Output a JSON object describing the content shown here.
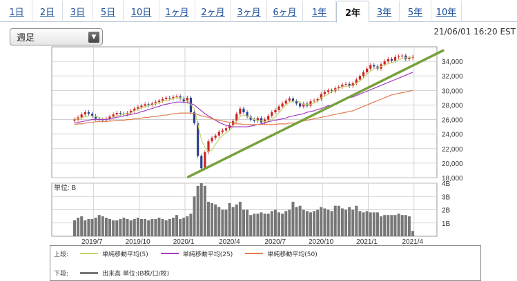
{
  "tabs": [
    {
      "label": "1日"
    },
    {
      "label": "2日"
    },
    {
      "label": "3日"
    },
    {
      "label": "5日"
    },
    {
      "label": "10日"
    },
    {
      "label": "1ヶ月"
    },
    {
      "label": "2ヶ月"
    },
    {
      "label": "3ヶ月"
    },
    {
      "label": "6ヶ月"
    },
    {
      "label": "1年"
    },
    {
      "label": "2年"
    },
    {
      "label": "3年"
    },
    {
      "label": "5年"
    },
    {
      "label": "10年"
    }
  ],
  "active_tab": "2年",
  "period_select": {
    "value": "週足",
    "arrow_icon": "triangle-down-icon"
  },
  "timestamp": "21/06/01 16:20 EST",
  "legend": {
    "upper_prefix": "上段:",
    "lower_prefix": "下段:",
    "ma5": "単純移動平均(5)",
    "ma25": "単純移動平均(25)",
    "ma50": "単純移動平均(50)",
    "volume": "出来高 単位:(B株/口/枚)"
  },
  "chart_data": [
    {
      "type": "line",
      "subtype": "candlestick weekly",
      "ylabel_ticks": [
        "34,000",
        "32,000",
        "30,000",
        "28,000",
        "26,000",
        "24,000",
        "22,000",
        "20,000",
        "18,000"
      ],
      "ylim": [
        18000,
        36000
      ],
      "x_ticks": [
        "2019/7",
        "2019/10",
        "2020/1",
        "2020/4",
        "2020/7",
        "2020/10",
        "2021/1",
        "2021/4"
      ],
      "grid": true,
      "price_series": [
        {
          "name": "close",
          "values": [
            26000,
            26300,
            26700,
            27000,
            26800,
            26500,
            26100,
            26000,
            25900,
            26100,
            26400,
            26700,
            26900,
            26800,
            26700,
            26900,
            27200,
            27500,
            27700,
            27900,
            28100,
            28000,
            28200,
            28400,
            28600,
            28800,
            29000,
            28900,
            29100,
            29200,
            28900,
            28500,
            29000,
            27000,
            25500,
            21000,
            19300,
            21500,
            23000,
            23500,
            23800,
            24300,
            24500,
            24800,
            25200,
            25800,
            26800,
            27500,
            27000,
            26400,
            26000,
            25800,
            26200,
            25600,
            26000,
            26500,
            27000,
            27300,
            27800,
            28200,
            28600,
            28900,
            28500,
            28200,
            27800,
            28200,
            27900,
            28500,
            28600,
            28800,
            29500,
            29800,
            30000,
            29900,
            30300,
            30500,
            30800,
            30900,
            30600,
            31000,
            31500,
            32000,
            32500,
            33000,
            33500,
            33300,
            33000,
            33600,
            34000,
            34300,
            34100,
            34600,
            34700,
            34800,
            34300,
            34500,
            34600
          ]
        },
        {
          "name": "単純移動平均(5)",
          "values": [
            26100,
            26100,
            26200,
            26400,
            26500,
            26500,
            26400,
            26300,
            26100,
            26000,
            26100,
            26300,
            26500,
            26600,
            26700,
            26800,
            26900,
            27200,
            27400,
            27600,
            27800,
            27900,
            28000,
            28200,
            28300,
            28500,
            28600,
            28700,
            28900,
            29000,
            29000,
            28800,
            28600,
            28100,
            27500,
            25400,
            23200,
            22200,
            21600,
            21800,
            22600,
            23300,
            23800,
            24200,
            24500,
            25100,
            25800,
            26400,
            26600,
            26500,
            26300,
            26000,
            25900,
            25800,
            25700,
            25800,
            26000,
            26400,
            26900,
            27500,
            28000,
            28400,
            28500,
            28600,
            28400,
            28100,
            28100,
            28100,
            28300,
            28500,
            29000,
            29200,
            29500,
            29800,
            30100,
            30300,
            30500,
            30600,
            30600,
            30700,
            31000,
            31300,
            31700,
            32200,
            32700,
            33000,
            33100,
            33300,
            33500,
            33700,
            33800,
            34000,
            34200,
            34400,
            34500,
            34500,
            34600
          ]
        },
        {
          "name": "単純移動平均(25)",
          "values": [
            25500,
            25600,
            25700,
            25800,
            25900,
            26000,
            26000,
            26000,
            26000,
            26000,
            26100,
            26200,
            26300,
            26400,
            26500,
            26600,
            26700,
            26800,
            26900,
            27100,
            27200,
            27400,
            27500,
            27700,
            27800,
            28000,
            28100,
            28200,
            28300,
            28400,
            28400,
            28400,
            28300,
            28200,
            28000,
            27600,
            27200,
            26800,
            26500,
            26200,
            25900,
            25600,
            25400,
            25200,
            25100,
            25000,
            25000,
            25000,
            25000,
            25000,
            25100,
            25200,
            25300,
            25400,
            25500,
            25700,
            25800,
            25900,
            26000,
            26100,
            26200,
            26400,
            26500,
            26600,
            26700,
            26800,
            27000,
            27100,
            27200,
            27400,
            27500,
            27700,
            27900,
            28000,
            28200,
            28400,
            28600,
            28800,
            29000,
            29100,
            29300,
            29500,
            29700,
            29900,
            30100,
            30300,
            30500,
            30700,
            30900,
            31100,
            31300,
            31500,
            31700,
            31900,
            32100,
            32300,
            32500
          ]
        },
        {
          "name": "単純移動平均(50)",
          "values": [
            25300,
            25400,
            25400,
            25500,
            25600,
            25600,
            25700,
            25700,
            25700,
            25700,
            25800,
            25800,
            25900,
            25900,
            25900,
            26000,
            26000,
            26100,
            26100,
            26200,
            26300,
            26300,
            26400,
            26400,
            26500,
            26600,
            26600,
            26700,
            26800,
            26800,
            26900,
            26900,
            26900,
            26900,
            26800,
            26700,
            26500,
            26400,
            26300,
            26100,
            26000,
            25900,
            25800,
            25700,
            25600,
            25500,
            25400,
            25400,
            25300,
            25300,
            25300,
            25300,
            25300,
            25300,
            25300,
            25300,
            25300,
            25300,
            25400,
            25400,
            25400,
            25500,
            25500,
            25600,
            25700,
            25800,
            25900,
            26000,
            26100,
            26200,
            26300,
            26400,
            26500,
            26600,
            26700,
            26800,
            26900,
            27000,
            27100,
            27200,
            27400,
            27600,
            27800,
            28000,
            28200,
            28400,
            28600,
            28800,
            29000,
            29200,
            29400,
            29500,
            29600,
            29700,
            29800,
            29900,
            30000
          ]
        }
      ],
      "trendline": {
        "from": {
          "x": "2020/3",
          "y": 18100
        },
        "to": {
          "x": "2021/6",
          "y": 35500
        },
        "color": "#77a13a"
      }
    },
    {
      "type": "bar",
      "subtype": "volume",
      "ylabel": "単位: B",
      "ylabel_ticks": [
        "4B",
        "3B",
        "2B",
        "1B"
      ],
      "ylim": [
        0,
        4
      ],
      "values": [
        1.2,
        1.4,
        1.5,
        1.2,
        1.3,
        1.3,
        1.4,
        1.6,
        1.5,
        1.4,
        1.3,
        1.2,
        1.2,
        1.3,
        1.4,
        1.3,
        1.2,
        1.3,
        1.4,
        1.3,
        1.3,
        1.2,
        1.3,
        1.3,
        1.4,
        1.3,
        1.2,
        1.3,
        1.4,
        1.6,
        1.3,
        1.4,
        1.5,
        1.7,
        3.0,
        3.8,
        4.0,
        3.8,
        2.6,
        2.5,
        2.4,
        2.2,
        2.0,
        2.0,
        2.5,
        2.2,
        2.4,
        2.6,
        2.0,
        2.0,
        1.6,
        1.7,
        1.7,
        1.8,
        1.7,
        1.7,
        1.9,
        2.0,
        1.8,
        1.7,
        1.9,
        2.0,
        2.6,
        2.2,
        2.3,
        2.0,
        1.9,
        1.8,
        1.9,
        2.0,
        2.2,
        2.1,
        2.0,
        1.9,
        2.3,
        2.3,
        2.1,
        2.0,
        2.2,
        2.0,
        2.3,
        1.9,
        1.8,
        1.9,
        1.8,
        1.8,
        1.8,
        1.5,
        1.6,
        1.6,
        1.6,
        1.6,
        1.7,
        1.6,
        1.6,
        1.5,
        0.4
      ]
    }
  ],
  "colors": {
    "up_candle": "#cc2222",
    "down_candle": "#2a3f8f",
    "ma5": "#c8d46a",
    "ma25": "#a43cc4",
    "ma50": "#e07c4c",
    "volume_bar": "#777777",
    "grid": "#c9c9c9"
  }
}
